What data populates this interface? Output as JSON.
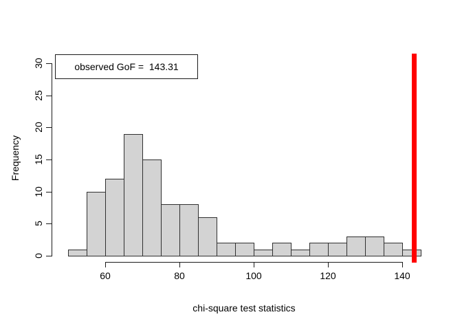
{
  "chart_data": {
    "type": "bar",
    "subtype": "histogram",
    "title": "",
    "xlabel": "chi-square test statistics",
    "ylabel": "Frequency",
    "bin_edges": [
      50,
      55,
      60,
      65,
      70,
      75,
      80,
      85,
      90,
      95,
      100,
      105,
      110,
      115,
      120,
      125,
      130,
      135,
      140,
      145
    ],
    "frequencies": [
      1,
      10,
      12,
      19,
      15,
      8,
      8,
      6,
      2,
      2,
      1,
      2,
      1,
      2,
      2,
      3,
      3,
      2,
      1
    ],
    "x_ticks": [
      60,
      80,
      100,
      120,
      140
    ],
    "x_tick_labels": [
      "60",
      "80",
      "100",
      "120",
      "140"
    ],
    "y_ticks": [
      0,
      5,
      10,
      15,
      20,
      25,
      30
    ],
    "y_tick_labels": [
      "0",
      "5",
      "10",
      "15",
      "20",
      "25",
      "30"
    ],
    "xlim": [
      50,
      145
    ],
    "ylim": [
      0,
      30
    ],
    "grid": "off",
    "bar_fill": "#d3d3d3",
    "bar_border": "#2f2f2f",
    "observed_line": {
      "value": 143.31,
      "color": "#ff0000"
    },
    "legend": {
      "label": "observed GoF =  143.31",
      "position": "top-left"
    }
  }
}
